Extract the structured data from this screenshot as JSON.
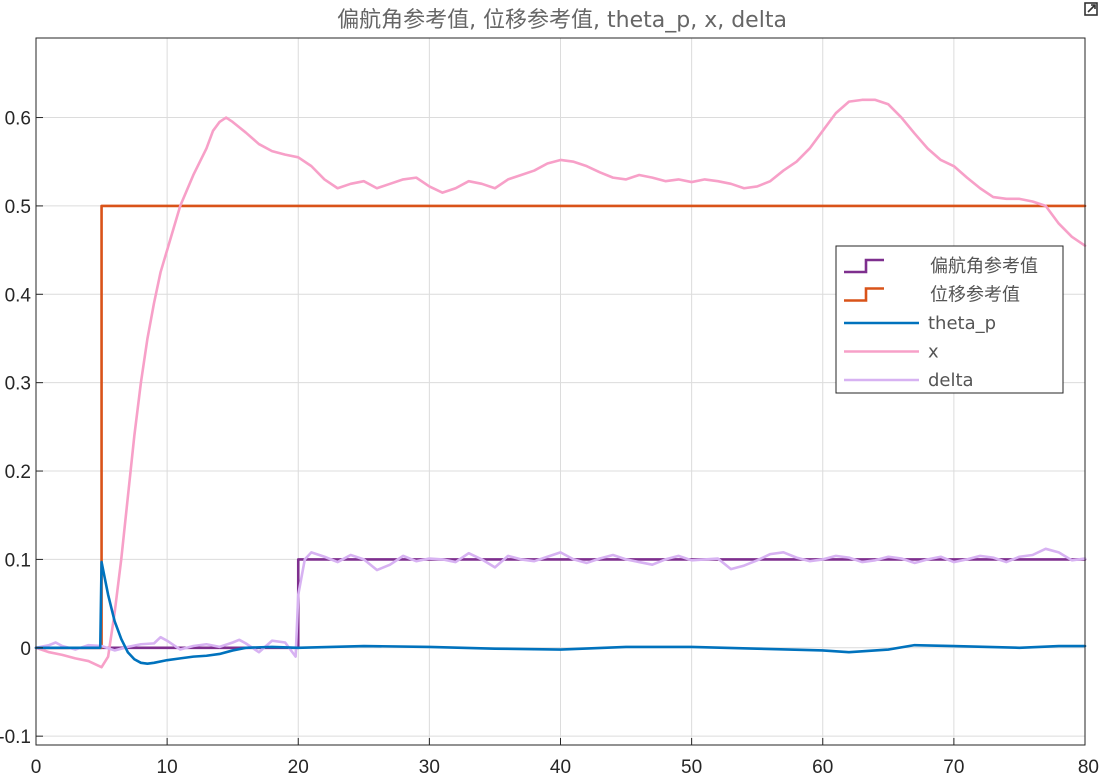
{
  "chart_data": {
    "type": "line",
    "title": "偏航角参考值, 位移参考值, theta_p, x, delta",
    "xlabel": "",
    "ylabel": "",
    "xlim": [
      0,
      80
    ],
    "ylim": [
      -0.11,
      0.69
    ],
    "xticks": [
      0,
      10,
      20,
      30,
      40,
      50,
      60,
      70,
      80
    ],
    "yticks": [
      -0.1,
      0,
      0.1,
      0.2,
      0.3,
      0.4,
      0.5,
      0.6
    ],
    "ytick_labels": [
      "-0.1",
      "0",
      "0.1",
      "0.2",
      "0.3",
      "0.4",
      "0.5",
      "0.6"
    ],
    "grid": true,
    "legend_position": "right",
    "series": [
      {
        "name": "偏航角参考值",
        "color": "#7e2f8e",
        "style": "step",
        "x": [
          0,
          20,
          20,
          80
        ],
        "y": [
          0,
          0,
          0.1,
          0.1
        ]
      },
      {
        "name": "位移参考值",
        "color": "#d95319",
        "style": "step",
        "x": [
          0,
          5,
          5,
          80
        ],
        "y": [
          0,
          0,
          0.5,
          0.5
        ]
      },
      {
        "name": "theta_p",
        "color": "#0072bd",
        "style": "line",
        "x": [
          0,
          4.9,
          5,
          5.5,
          6,
          6.5,
          7,
          7.5,
          8,
          8.5,
          9,
          10,
          11,
          12,
          13,
          14,
          15,
          16,
          18,
          20,
          25,
          30,
          35,
          40,
          45,
          50,
          55,
          60,
          62,
          65,
          67,
          70,
          75,
          78,
          80
        ],
        "y": [
          0,
          0,
          0.097,
          0.06,
          0.03,
          0.01,
          -0.005,
          -0.013,
          -0.017,
          -0.018,
          -0.017,
          -0.014,
          -0.012,
          -0.01,
          -0.009,
          -0.007,
          -0.003,
          0,
          0.001,
          0,
          0.002,
          0.001,
          -0.001,
          -0.002,
          0.001,
          0.001,
          -0.001,
          -0.003,
          -0.005,
          -0.002,
          0.003,
          0.002,
          0,
          0.002,
          0.002
        ]
      },
      {
        "name": "x",
        "color": "#f7a0c8",
        "style": "line",
        "x": [
          0,
          1,
          2,
          3,
          4,
          5,
          5.5,
          6,
          6.5,
          7,
          7.5,
          8,
          8.5,
          9,
          9.5,
          10,
          11,
          12,
          13,
          13.5,
          14,
          14.5,
          15,
          16,
          17,
          18,
          19,
          20,
          21,
          22,
          23,
          24,
          25,
          26,
          27,
          28,
          29,
          30,
          31,
          32,
          33,
          34,
          35,
          36,
          37,
          38,
          39,
          40,
          41,
          42,
          43,
          44,
          45,
          46,
          47,
          48,
          49,
          50,
          51,
          52,
          53,
          54,
          55,
          56,
          57,
          58,
          59,
          60,
          61,
          62,
          63,
          64,
          65,
          66,
          67,
          68,
          69,
          70,
          71,
          72,
          73,
          74,
          75,
          76,
          77,
          78,
          79,
          80
        ],
        "y": [
          0,
          -0.005,
          -0.008,
          -0.012,
          -0.015,
          -0.022,
          -0.01,
          0.04,
          0.1,
          0.17,
          0.24,
          0.3,
          0.35,
          0.39,
          0.425,
          0.45,
          0.5,
          0.535,
          0.565,
          0.585,
          0.595,
          0.6,
          0.595,
          0.583,
          0.57,
          0.562,
          0.558,
          0.555,
          0.545,
          0.53,
          0.52,
          0.525,
          0.528,
          0.52,
          0.525,
          0.53,
          0.532,
          0.522,
          0.515,
          0.52,
          0.528,
          0.525,
          0.52,
          0.53,
          0.535,
          0.54,
          0.548,
          0.552,
          0.55,
          0.545,
          0.538,
          0.532,
          0.53,
          0.535,
          0.532,
          0.528,
          0.53,
          0.527,
          0.53,
          0.528,
          0.525,
          0.52,
          0.522,
          0.528,
          0.54,
          0.55,
          0.565,
          0.585,
          0.605,
          0.618,
          0.62,
          0.62,
          0.615,
          0.6,
          0.582,
          0.565,
          0.552,
          0.545,
          0.532,
          0.52,
          0.51,
          0.508,
          0.508,
          0.505,
          0.5,
          0.48,
          0.465,
          0.455
        ]
      },
      {
        "name": "delta",
        "color": "#d7b2f2",
        "style": "line",
        "x": [
          0,
          1,
          1.5,
          2,
          3,
          4,
          5,
          6,
          7,
          8,
          9,
          9.5,
          10,
          11,
          12,
          13,
          14,
          15,
          15.5,
          16,
          17,
          18,
          19,
          19.8,
          20,
          20.5,
          21,
          22,
          23,
          24,
          25,
          26,
          27,
          28,
          29,
          30,
          31,
          32,
          33,
          34,
          35,
          36,
          37,
          38,
          39,
          40,
          41,
          42,
          43,
          44,
          45,
          46,
          47,
          48,
          49,
          50,
          51,
          52,
          53,
          54,
          55,
          56,
          57,
          58,
          59,
          60,
          61,
          62,
          63,
          64,
          65,
          66,
          67,
          68,
          69,
          70,
          71,
          72,
          73,
          74,
          75,
          76,
          77,
          78,
          79,
          80
        ],
        "y": [
          0,
          0.003,
          0.006,
          0.002,
          -0.002,
          0.003,
          0.002,
          -0.003,
          0.001,
          0.004,
          0.005,
          0.012,
          0.008,
          -0.002,
          0.002,
          0.004,
          0.001,
          0.006,
          0.009,
          0.005,
          -0.005,
          0.008,
          0.006,
          -0.01,
          0.06,
          0.1,
          0.108,
          0.103,
          0.097,
          0.105,
          0.1,
          0.088,
          0.094,
          0.104,
          0.098,
          0.101,
          0.1,
          0.097,
          0.107,
          0.1,
          0.091,
          0.104,
          0.1,
          0.098,
          0.103,
          0.108,
          0.1,
          0.096,
          0.101,
          0.105,
          0.1,
          0.097,
          0.094,
          0.1,
          0.104,
          0.099,
          0.1,
          0.101,
          0.089,
          0.093,
          0.099,
          0.106,
          0.108,
          0.102,
          0.098,
          0.1,
          0.104,
          0.102,
          0.097,
          0.099,
          0.103,
          0.101,
          0.096,
          0.1,
          0.103,
          0.097,
          0.1,
          0.104,
          0.102,
          0.097,
          0.103,
          0.105,
          0.112,
          0.108,
          0.099,
          0.101
        ]
      }
    ]
  }
}
